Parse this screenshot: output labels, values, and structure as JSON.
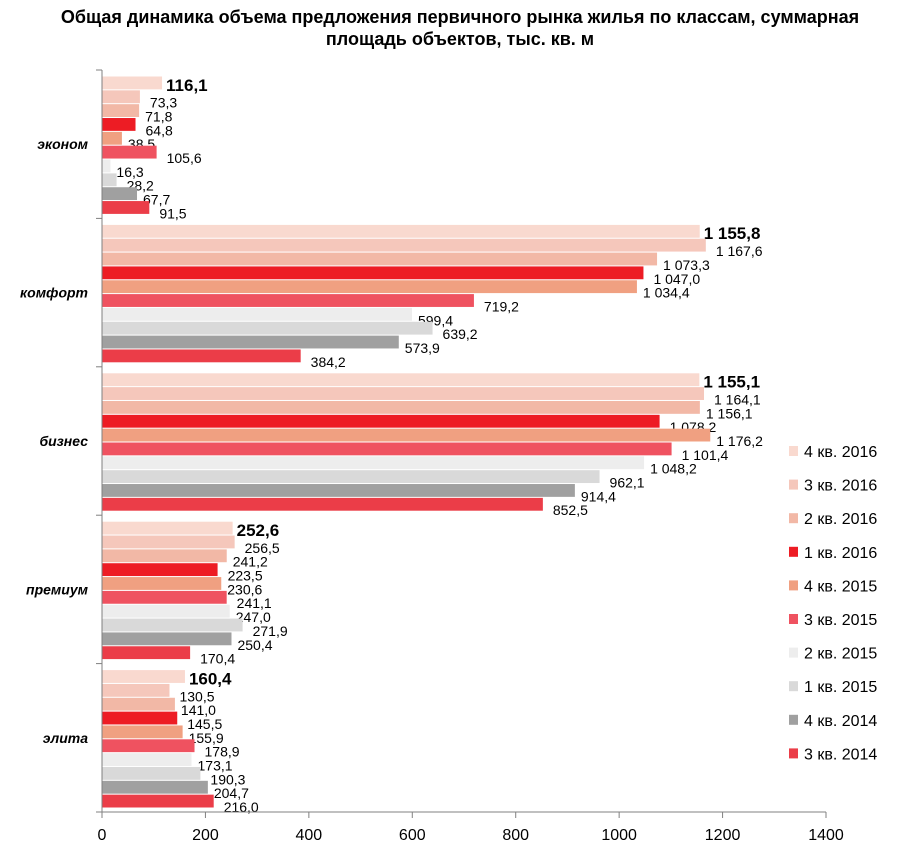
{
  "chart_data": {
    "type": "bar",
    "orientation": "horizontal",
    "title": "Общая динамика объема предложения первичного рынка жилья по классам, суммарная площадь объектов, тыс. кв. м",
    "categories": [
      "эконом",
      "комфорт",
      "бизнес",
      "премиум",
      "элита"
    ],
    "series": [
      {
        "name": "4 кв. 2016",
        "color": "#f9d9cf",
        "values": [
          116.1,
          1155.8,
          1155.1,
          252.6,
          160.4
        ],
        "labels": [
          "116,1",
          "1 155,8",
          "1 155,1",
          "252,6",
          "160,4"
        ]
      },
      {
        "name": "3 кв. 2016",
        "color": "#f5c7bb",
        "values": [
          73.3,
          1167.6,
          1164.1,
          256.5,
          130.5
        ],
        "labels": [
          "73,3",
          "1 167,6",
          "1 164,1",
          "256,5",
          "130,5"
        ]
      },
      {
        "name": "2 кв. 2016",
        "color": "#f2b8a6",
        "values": [
          71.8,
          1073.3,
          1156.1,
          241.2,
          141.0
        ],
        "labels": [
          "71,8",
          "1 073,3",
          "1 156,1",
          "241,2",
          "141,0"
        ]
      },
      {
        "name": "1 кв. 2016",
        "color": "#ed1c24",
        "values": [
          64.8,
          1047.0,
          1078.2,
          223.5,
          145.5
        ],
        "labels": [
          "64,8",
          "1 047,0",
          "1 078,2",
          "223,5",
          "145,5"
        ]
      },
      {
        "name": "4 кв. 2015",
        "color": "#f0a081",
        "values": [
          38.5,
          1034.4,
          1176.2,
          230.6,
          155.9
        ],
        "labels": [
          "38,5",
          "1 034,4",
          "1 176,2",
          "230,6",
          "155,9"
        ]
      },
      {
        "name": "3 кв. 2015",
        "color": "#ef5260",
        "values": [
          105.6,
          719.2,
          1101.4,
          241.1,
          178.9
        ],
        "labels": [
          "105,6",
          "719,2",
          "1 101,4",
          "241,1",
          "178,9"
        ]
      },
      {
        "name": "2 кв. 2015",
        "color": "#ededed",
        "values": [
          16.3,
          599.4,
          1048.2,
          247.0,
          173.1
        ],
        "labels": [
          "16,3",
          "599,4",
          "1 048,2",
          "247,0",
          "173,1"
        ]
      },
      {
        "name": "1 кв. 2015",
        "color": "#d9d9d9",
        "values": [
          28.2,
          639.2,
          962.1,
          271.9,
          190.3
        ],
        "labels": [
          "28,2",
          "639,2",
          "962,1",
          "271,9",
          "190,3"
        ]
      },
      {
        "name": "4 кв. 2014",
        "color": "#a0a0a0",
        "values": [
          67.7,
          573.9,
          914.4,
          250.4,
          204.7
        ],
        "labels": [
          "67,7",
          "573,9",
          "914,4",
          "250,4",
          "204,7"
        ]
      },
      {
        "name": "3 кв. 2014",
        "color": "#eb3d48",
        "values": [
          91.5,
          384.2,
          852.5,
          170.4,
          216.0
        ],
        "labels": [
          "91,5",
          "384,2",
          "852,5",
          "170,4",
          "216,0"
        ]
      }
    ],
    "xlim": [
      0,
      1400
    ],
    "xticks": [
      "0",
      "200",
      "400",
      "600",
      "800",
      "1000",
      "1200",
      "1400"
    ],
    "grid": false,
    "legend_position": "right"
  }
}
